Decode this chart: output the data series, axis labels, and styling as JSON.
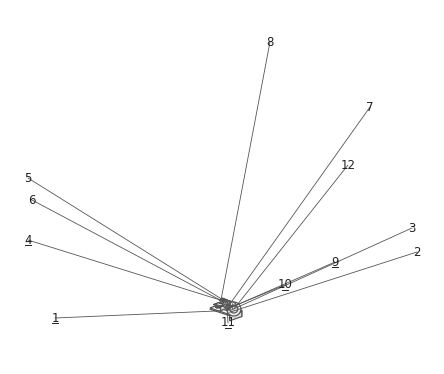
{
  "background_color": "#ffffff",
  "line_color": "#555555",
  "figsize": [
    4.44,
    3.74
  ],
  "dpi": 100,
  "underlined_labels": [
    "1",
    "4",
    "9",
    "10",
    "11"
  ],
  "label_fontsize": 8.5
}
